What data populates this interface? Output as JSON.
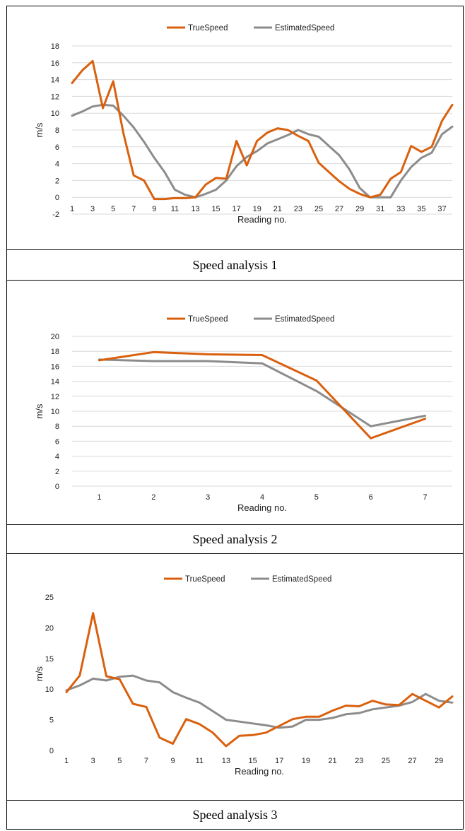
{
  "colors": {
    "true_speed": "#D9600E",
    "estimated_speed": "#8C8C8C",
    "grid": "#D9D9D9"
  },
  "captions": [
    "Speed analysis 1",
    "Speed analysis 2",
    "Speed analysis 3"
  ],
  "chart_data": [
    {
      "type": "line",
      "title": "",
      "xlabel": "Reading no.",
      "ylabel": "m/s",
      "ylim": [
        -2,
        18
      ],
      "yticks": [
        -2,
        0,
        2,
        4,
        6,
        8,
        10,
        12,
        14,
        16,
        18
      ],
      "x": [
        1,
        2,
        3,
        4,
        5,
        6,
        7,
        8,
        9,
        10,
        11,
        12,
        13,
        14,
        15,
        16,
        17,
        18,
        19,
        20,
        21,
        22,
        23,
        24,
        25,
        26,
        27,
        28,
        29,
        30,
        31,
        32,
        33,
        34,
        35,
        36,
        37,
        38
      ],
      "xtick_labels": [
        "1",
        "3",
        "5",
        "7",
        "9",
        "11",
        "13",
        "15",
        "17",
        "19",
        "21",
        "23",
        "25",
        "27",
        "29",
        "31",
        "33",
        "35",
        "37"
      ],
      "legend": "top-center",
      "grid": true,
      "series": [
        {
          "name": "TrueSpeed",
          "values": [
            13.6,
            15.1,
            16.2,
            10.6,
            13.8,
            7.6,
            2.6,
            2.0,
            -0.2,
            -0.2,
            -0.1,
            -0.1,
            0.0,
            1.5,
            2.3,
            2.2,
            6.7,
            3.8,
            6.7,
            7.7,
            8.2,
            8.0,
            7.3,
            6.7,
            4.1,
            3.0,
            1.9,
            1.0,
            0.4,
            0.0,
            0.3,
            2.2,
            3.0,
            6.1,
            5.4,
            6.0,
            9.1,
            11.0
          ]
        },
        {
          "name": "EstimatedSpeed",
          "values": [
            9.7,
            10.2,
            10.8,
            11.0,
            10.9,
            9.7,
            8.3,
            6.6,
            4.7,
            3.0,
            0.9,
            0.3,
            0.0,
            0.4,
            0.9,
            2.0,
            3.7,
            4.8,
            5.5,
            6.4,
            6.9,
            7.4,
            8.0,
            7.5,
            7.2,
            6.1,
            5.0,
            3.3,
            1.1,
            0.0,
            0.0,
            0.0,
            2.0,
            3.6,
            4.7,
            5.3,
            7.5,
            8.4
          ]
        }
      ]
    },
    {
      "type": "line",
      "title": "",
      "xlabel": "Reading no.",
      "ylabel": "m/s",
      "ylim": [
        0,
        20
      ],
      "yticks": [
        0,
        2,
        4,
        6,
        8,
        10,
        12,
        14,
        16,
        18,
        20
      ],
      "x": [
        1,
        2,
        3,
        4,
        5,
        6,
        7
      ],
      "xtick_labels": [
        "1",
        "2",
        "3",
        "4",
        "5",
        "6",
        "7"
      ],
      "legend": "top-center",
      "grid": true,
      "series": [
        {
          "name": "TrueSpeed",
          "values": [
            16.8,
            17.9,
            17.6,
            17.5,
            14.1,
            6.4,
            9.0
          ]
        },
        {
          "name": "EstimatedSpeed",
          "values": [
            16.9,
            16.7,
            16.7,
            16.4,
            12.7,
            8.0,
            9.4
          ]
        }
      ]
    },
    {
      "type": "line",
      "title": "",
      "xlabel": "Reading no.",
      "ylabel": "m/s",
      "ylim": [
        0,
        25
      ],
      "yticks": [
        0,
        5,
        10,
        15,
        20,
        25
      ],
      "x": [
        1,
        2,
        3,
        4,
        5,
        6,
        7,
        8,
        9,
        10,
        11,
        12,
        13,
        14,
        15,
        16,
        17,
        18,
        19,
        20,
        21,
        22,
        23,
        24,
        25,
        26,
        27,
        28,
        29,
        30
      ],
      "xtick_labels": [
        "1",
        "3",
        "5",
        "7",
        "9",
        "11",
        "13",
        "15",
        "17",
        "19",
        "21",
        "23",
        "25",
        "27",
        "29"
      ],
      "legend": "top-center",
      "grid": false,
      "series": [
        {
          "name": "TrueSpeed",
          "values": [
            9.5,
            12.2,
            22.4,
            12.1,
            11.6,
            7.6,
            7.1,
            2.1,
            1.1,
            5.1,
            4.3,
            2.9,
            0.7,
            2.4,
            2.5,
            2.9,
            4.0,
            5.1,
            5.5,
            5.5,
            6.5,
            7.3,
            7.2,
            8.1,
            7.5,
            7.4,
            9.2,
            8.1,
            7.0,
            8.8
          ]
        },
        {
          "name": "EstimatedSpeed",
          "values": [
            9.8,
            10.6,
            11.7,
            11.4,
            12.0,
            12.2,
            11.4,
            11.1,
            9.5,
            8.6,
            7.8,
            6.4,
            5.0,
            4.7,
            4.4,
            4.1,
            3.7,
            3.9,
            5.0,
            5.0,
            5.3,
            5.9,
            6.1,
            6.7,
            7.0,
            7.3,
            7.9,
            9.2,
            8.1,
            7.8
          ]
        }
      ]
    }
  ]
}
